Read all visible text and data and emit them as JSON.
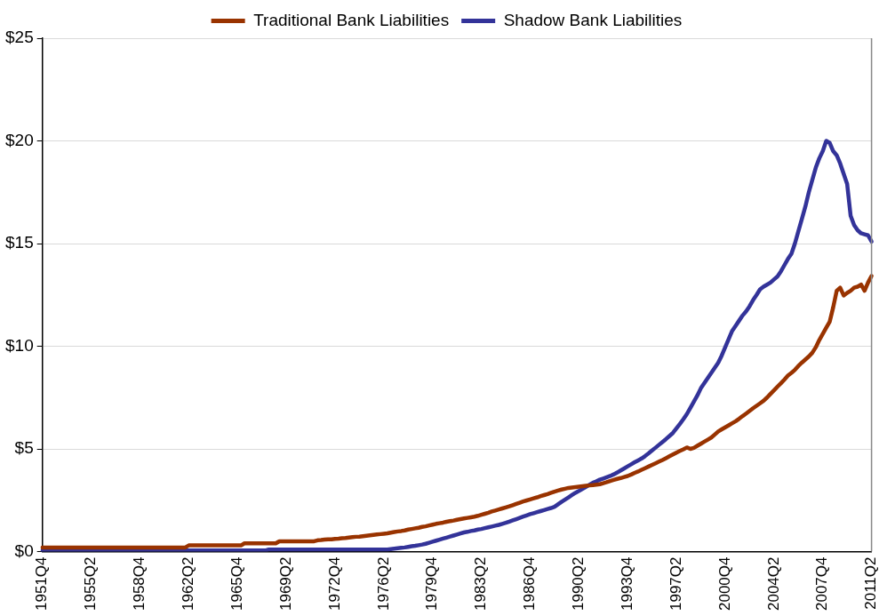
{
  "chart_data": {
    "type": "line",
    "categories": [
      "1951Q4",
      null,
      null,
      null,
      null,
      null,
      null,
      null,
      null,
      null,
      null,
      null,
      null,
      null,
      "1955Q2",
      null,
      null,
      null,
      null,
      null,
      null,
      null,
      null,
      null,
      null,
      null,
      null,
      null,
      "1958Q4",
      null,
      null,
      null,
      null,
      null,
      null,
      null,
      null,
      null,
      null,
      null,
      null,
      null,
      "1962Q2",
      null,
      null,
      null,
      null,
      null,
      null,
      null,
      null,
      null,
      null,
      null,
      null,
      null,
      "1965Q4",
      null,
      null,
      null,
      null,
      null,
      null,
      null,
      null,
      null,
      null,
      null,
      null,
      null,
      "1969Q2",
      null,
      null,
      null,
      null,
      null,
      null,
      null,
      null,
      null,
      null,
      null,
      null,
      null,
      "1972Q4",
      null,
      null,
      null,
      null,
      null,
      null,
      null,
      null,
      null,
      null,
      null,
      null,
      null,
      "1976Q2",
      null,
      null,
      null,
      null,
      null,
      null,
      null,
      null,
      null,
      null,
      null,
      null,
      null,
      "1979Q4",
      null,
      null,
      null,
      null,
      null,
      null,
      null,
      null,
      null,
      null,
      null,
      null,
      null,
      "1983Q2",
      null,
      null,
      null,
      null,
      null,
      null,
      null,
      null,
      null,
      null,
      null,
      null,
      null,
      "1986Q4",
      null,
      null,
      null,
      null,
      null,
      null,
      null,
      null,
      null,
      null,
      null,
      null,
      null,
      "1990Q2",
      null,
      null,
      null,
      null,
      null,
      null,
      null,
      null,
      null,
      null,
      null,
      null,
      null,
      "1993Q4",
      null,
      null,
      null,
      null,
      null,
      null,
      null,
      null,
      null,
      null,
      null,
      null,
      null,
      "1997Q2",
      null,
      null,
      null,
      null,
      null,
      null,
      null,
      null,
      null,
      null,
      null,
      null,
      null,
      "2000Q4",
      null,
      null,
      null,
      null,
      null,
      null,
      null,
      null,
      null,
      null,
      null,
      null,
      null,
      "2004Q2",
      null,
      null,
      null,
      null,
      null,
      null,
      null,
      null,
      null,
      null,
      null,
      null,
      null,
      "2007Q4",
      null,
      null,
      null,
      null,
      null,
      null,
      null,
      null,
      null,
      null,
      null,
      null,
      null,
      "2011Q2"
    ],
    "series": [
      {
        "name": "Traditional Bank Liabilities",
        "color": "#993300",
        "values": [
          0.2,
          0.2,
          0.2,
          0.2,
          0.2,
          0.2,
          0.2,
          0.2,
          0.2,
          0.2,
          0.2,
          0.2,
          0.2,
          0.2,
          0.2,
          0.2,
          0.2,
          0.2,
          0.2,
          0.2,
          0.2,
          0.2,
          0.2,
          0.2,
          0.2,
          0.2,
          0.2,
          0.2,
          0.2,
          0.2,
          0.2,
          0.2,
          0.2,
          0.2,
          0.2,
          0.2,
          0.2,
          0.2,
          0.2,
          0.2,
          0.2,
          0.2,
          0.3,
          0.3,
          0.3,
          0.3,
          0.3,
          0.3,
          0.3,
          0.3,
          0.3,
          0.3,
          0.3,
          0.3,
          0.3,
          0.3,
          0.3,
          0.3,
          0.4,
          0.4,
          0.4,
          0.4,
          0.4,
          0.4,
          0.4,
          0.4,
          0.4,
          0.4,
          0.5,
          0.5,
          0.5,
          0.5,
          0.5,
          0.5,
          0.5,
          0.5,
          0.5,
          0.5,
          0.5,
          0.55,
          0.56,
          0.58,
          0.6,
          0.6,
          0.62,
          0.63,
          0.65,
          0.66,
          0.68,
          0.7,
          0.72,
          0.73,
          0.75,
          0.77,
          0.79,
          0.81,
          0.83,
          0.85,
          0.87,
          0.89,
          0.92,
          0.95,
          0.98,
          1.0,
          1.03,
          1.07,
          1.1,
          1.13,
          1.16,
          1.2,
          1.23,
          1.27,
          1.31,
          1.35,
          1.38,
          1.41,
          1.45,
          1.48,
          1.51,
          1.55,
          1.58,
          1.61,
          1.64,
          1.67,
          1.7,
          1.74,
          1.79,
          1.84,
          1.89,
          1.95,
          2.0,
          2.05,
          2.1,
          2.15,
          2.2,
          2.26,
          2.32,
          2.38,
          2.44,
          2.49,
          2.54,
          2.59,
          2.64,
          2.7,
          2.75,
          2.8,
          2.86,
          2.92,
          2.97,
          3.02,
          3.06,
          3.1,
          3.12,
          3.14,
          3.16,
          3.18,
          3.2,
          3.22,
          3.24,
          3.26,
          3.28,
          3.33,
          3.38,
          3.44,
          3.49,
          3.54,
          3.58,
          3.63,
          3.68,
          3.75,
          3.83,
          3.9,
          3.98,
          4.06,
          4.14,
          4.22,
          4.3,
          4.38,
          4.46,
          4.55,
          4.64,
          4.73,
          4.82,
          4.9,
          4.98,
          5.07,
          5.0,
          5.05,
          5.15,
          5.25,
          5.35,
          5.45,
          5.55,
          5.7,
          5.85,
          5.95,
          6.05,
          6.15,
          6.25,
          6.35,
          6.47,
          6.6,
          6.72,
          6.85,
          6.98,
          7.1,
          7.22,
          7.34,
          7.5,
          7.68,
          7.85,
          8.03,
          8.2,
          8.38,
          8.57,
          8.7,
          8.85,
          9.04,
          9.2,
          9.35,
          9.5,
          9.68,
          9.95,
          10.3,
          10.6,
          10.9,
          11.2,
          11.9,
          12.7,
          12.85,
          12.47,
          12.6,
          12.7,
          12.85,
          12.9,
          13.0,
          12.7,
          13.1,
          13.42
        ]
      },
      {
        "name": "Shadow Bank Liabilities",
        "color": "#333399",
        "values": [
          0.05,
          0.05,
          0.05,
          0.05,
          0.05,
          0.05,
          0.05,
          0.05,
          0.05,
          0.05,
          0.05,
          0.05,
          0.05,
          0.05,
          0.05,
          0.05,
          0.05,
          0.05,
          0.05,
          0.05,
          0.05,
          0.05,
          0.05,
          0.05,
          0.05,
          0.05,
          0.05,
          0.05,
          0.05,
          0.05,
          0.05,
          0.05,
          0.05,
          0.05,
          0.05,
          0.05,
          0.05,
          0.05,
          0.05,
          0.05,
          0.05,
          0.05,
          0.05,
          0.05,
          0.05,
          0.05,
          0.05,
          0.05,
          0.05,
          0.05,
          0.05,
          0.05,
          0.05,
          0.05,
          0.05,
          0.05,
          0.05,
          0.05,
          0.05,
          0.05,
          0.05,
          0.05,
          0.05,
          0.05,
          0.05,
          0.1,
          0.1,
          0.1,
          0.1,
          0.1,
          0.1,
          0.1,
          0.1,
          0.1,
          0.1,
          0.1,
          0.1,
          0.1,
          0.1,
          0.1,
          0.1,
          0.1,
          0.1,
          0.1,
          0.1,
          0.1,
          0.1,
          0.1,
          0.1,
          0.1,
          0.1,
          0.1,
          0.1,
          0.1,
          0.1,
          0.1,
          0.1,
          0.1,
          0.1,
          0.1,
          0.12,
          0.14,
          0.16,
          0.18,
          0.2,
          0.23,
          0.26,
          0.28,
          0.31,
          0.34,
          0.38,
          0.43,
          0.48,
          0.53,
          0.58,
          0.63,
          0.68,
          0.73,
          0.78,
          0.83,
          0.88,
          0.93,
          0.96,
          1.0,
          1.03,
          1.07,
          1.1,
          1.14,
          1.18,
          1.22,
          1.26,
          1.3,
          1.35,
          1.4,
          1.46,
          1.52,
          1.58,
          1.64,
          1.7,
          1.76,
          1.82,
          1.87,
          1.92,
          1.97,
          2.02,
          2.07,
          2.12,
          2.18,
          2.3,
          2.42,
          2.53,
          2.64,
          2.75,
          2.86,
          2.95,
          3.05,
          3.15,
          3.25,
          3.35,
          3.42,
          3.5,
          3.56,
          3.62,
          3.68,
          3.76,
          3.85,
          3.95,
          4.05,
          4.15,
          4.25,
          4.35,
          4.44,
          4.53,
          4.65,
          4.78,
          4.92,
          5.06,
          5.2,
          5.34,
          5.48,
          5.63,
          5.78,
          6.0,
          6.22,
          6.45,
          6.7,
          7.0,
          7.3,
          7.6,
          7.95,
          8.2,
          8.45,
          8.7,
          8.95,
          9.2,
          9.55,
          9.95,
          10.35,
          10.75,
          11.0,
          11.25,
          11.5,
          11.7,
          11.95,
          12.25,
          12.5,
          12.77,
          12.9,
          13.0,
          13.1,
          13.25,
          13.4,
          13.65,
          13.95,
          14.25,
          14.5,
          15.0,
          15.6,
          16.2,
          16.8,
          17.5,
          18.1,
          18.7,
          19.15,
          19.5,
          20.0,
          19.9,
          19.5,
          19.3,
          18.9,
          18.4,
          17.9,
          16.35,
          15.9,
          15.65,
          15.5,
          15.45,
          15.4,
          15.1
        ]
      }
    ],
    "ylim": [
      0,
      25
    ],
    "yticks": [
      {
        "value": 0,
        "label": "$0"
      },
      {
        "value": 5,
        "label": "$5"
      },
      {
        "value": 10,
        "label": "$10"
      },
      {
        "value": 15,
        "label": "$15"
      },
      {
        "value": 20,
        "label": "$20"
      },
      {
        "value": 25,
        "label": "$25"
      }
    ],
    "grid": "y",
    "legend": "top",
    "marker": "none",
    "line_style": "solid"
  }
}
